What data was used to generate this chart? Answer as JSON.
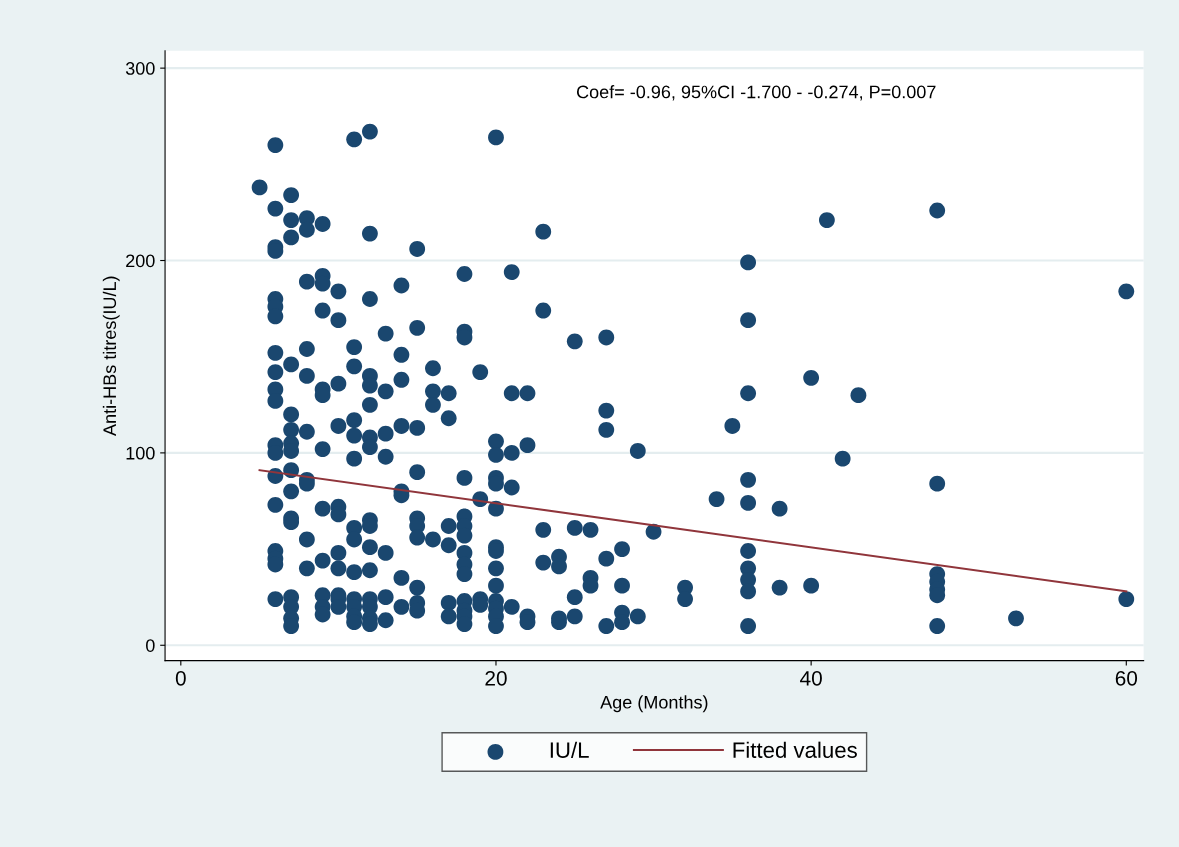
{
  "chart_data": {
    "type": "scatter",
    "xlabel": "Age (Months)",
    "ylabel": "Anti-HBs titres(IU/L)",
    "annotations": [
      "Coef= -0.96, 95%CI -1.700 - -0.274, P=0.007"
    ],
    "xlim": [
      -1,
      61.1
    ],
    "ylim": [
      -8,
      309
    ],
    "xticks": [
      0,
      20,
      40,
      60
    ],
    "yticks": [
      0,
      100,
      200,
      300
    ],
    "grid": "y",
    "legend": "bottom",
    "series": [
      {
        "name": "IU/L",
        "marker": "circle",
        "color": "#1a476f",
        "x": [
          5,
          6,
          6,
          6,
          6,
          6,
          6,
          6,
          6,
          6,
          6,
          6,
          6,
          6,
          6,
          6,
          6,
          6,
          6,
          6,
          7,
          7,
          7,
          7,
          7,
          7,
          7,
          7,
          7,
          7,
          7,
          7,
          7,
          7,
          7,
          7,
          8,
          8,
          8,
          8,
          8,
          8,
          8,
          8,
          8,
          8,
          9,
          9,
          9,
          9,
          9,
          9,
          9,
          9,
          9,
          9,
          9,
          9,
          10,
          10,
          10,
          10,
          10,
          10,
          10,
          10,
          10,
          10,
          10,
          11,
          11,
          11,
          11,
          11,
          11,
          11,
          11,
          11,
          11,
          11,
          11,
          11,
          12,
          12,
          12,
          12,
          12,
          12,
          12,
          12,
          12,
          12,
          12,
          12,
          12,
          12,
          12,
          12,
          13,
          13,
          13,
          13,
          13,
          13,
          13,
          14,
          14,
          14,
          14,
          14,
          14,
          14,
          14,
          15,
          15,
          15,
          15,
          15,
          15,
          15,
          15,
          15,
          15,
          16,
          16,
          16,
          16,
          17,
          17,
          17,
          17,
          17,
          17,
          18,
          18,
          18,
          18,
          18,
          18,
          18,
          18,
          18,
          18,
          18,
          18,
          18,
          18,
          19,
          19,
          19,
          19,
          20,
          20,
          20,
          20,
          20,
          20,
          20,
          20,
          20,
          20,
          20,
          20,
          20,
          20,
          21,
          21,
          21,
          21,
          21,
          22,
          22,
          22,
          22,
          23,
          23,
          23,
          23,
          24,
          24,
          24,
          24,
          25,
          25,
          25,
          25,
          26,
          26,
          26,
          27,
          27,
          27,
          27,
          27,
          28,
          28,
          28,
          28,
          29,
          29,
          30,
          32,
          32,
          34,
          35,
          36,
          36,
          36,
          36,
          36,
          36,
          36,
          36,
          36,
          36,
          38,
          38,
          40,
          40,
          41,
          42,
          43,
          48,
          48,
          48,
          48,
          48,
          48,
          48,
          53,
          60,
          60
        ],
        "values": [
          238,
          260,
          227,
          207,
          205,
          180,
          176,
          171,
          152,
          142,
          133,
          127,
          104,
          100,
          88,
          73,
          49,
          45,
          42,
          24,
          234,
          221,
          212,
          146,
          120,
          112,
          105,
          101,
          91,
          80,
          66,
          64,
          25,
          20,
          14,
          10,
          222,
          216,
          189,
          154,
          140,
          111,
          86,
          84,
          55,
          40,
          219,
          192,
          188,
          174,
          133,
          130,
          102,
          71,
          44,
          26,
          20,
          16,
          184,
          169,
          136,
          114,
          72,
          68,
          48,
          40,
          26,
          24,
          20,
          263,
          155,
          145,
          117,
          109,
          97,
          61,
          55,
          38,
          24,
          20,
          15,
          12,
          267,
          214,
          180,
          140,
          135,
          125,
          108,
          103,
          65,
          62,
          51,
          39,
          24,
          20,
          14,
          11,
          162,
          132,
          110,
          98,
          48,
          25,
          13,
          187,
          151,
          138,
          114,
          80,
          78,
          35,
          20,
          206,
          165,
          113,
          90,
          66,
          62,
          56,
          30,
          22,
          18,
          144,
          132,
          125,
          55,
          131,
          118,
          62,
          52,
          22,
          15,
          193,
          163,
          160,
          87,
          67,
          62,
          57,
          48,
          42,
          37,
          23,
          18,
          15,
          11,
          142,
          76,
          24,
          21,
          264,
          106,
          99,
          87,
          84,
          71,
          51,
          49,
          40,
          31,
          23,
          19,
          15,
          10,
          194,
          131,
          100,
          82,
          20,
          131,
          104,
          15,
          12,
          215,
          174,
          60,
          43,
          46,
          41,
          14,
          12,
          158,
          61,
          25,
          15,
          60,
          35,
          31,
          160,
          122,
          112,
          45,
          10,
          50,
          31,
          17,
          12,
          101,
          15,
          59,
          30,
          24,
          76,
          114,
          199,
          169,
          131,
          86,
          74,
          49,
          40,
          34,
          28,
          10,
          71,
          30,
          139,
          31,
          221,
          97,
          130,
          226,
          84,
          37,
          33,
          29,
          26,
          10,
          14,
          184,
          24
        ]
      },
      {
        "name": "Fitted values",
        "type": "line",
        "color": "#90353b",
        "x": [
          5,
          60
        ],
        "values": [
          91,
          28
        ]
      }
    ]
  }
}
